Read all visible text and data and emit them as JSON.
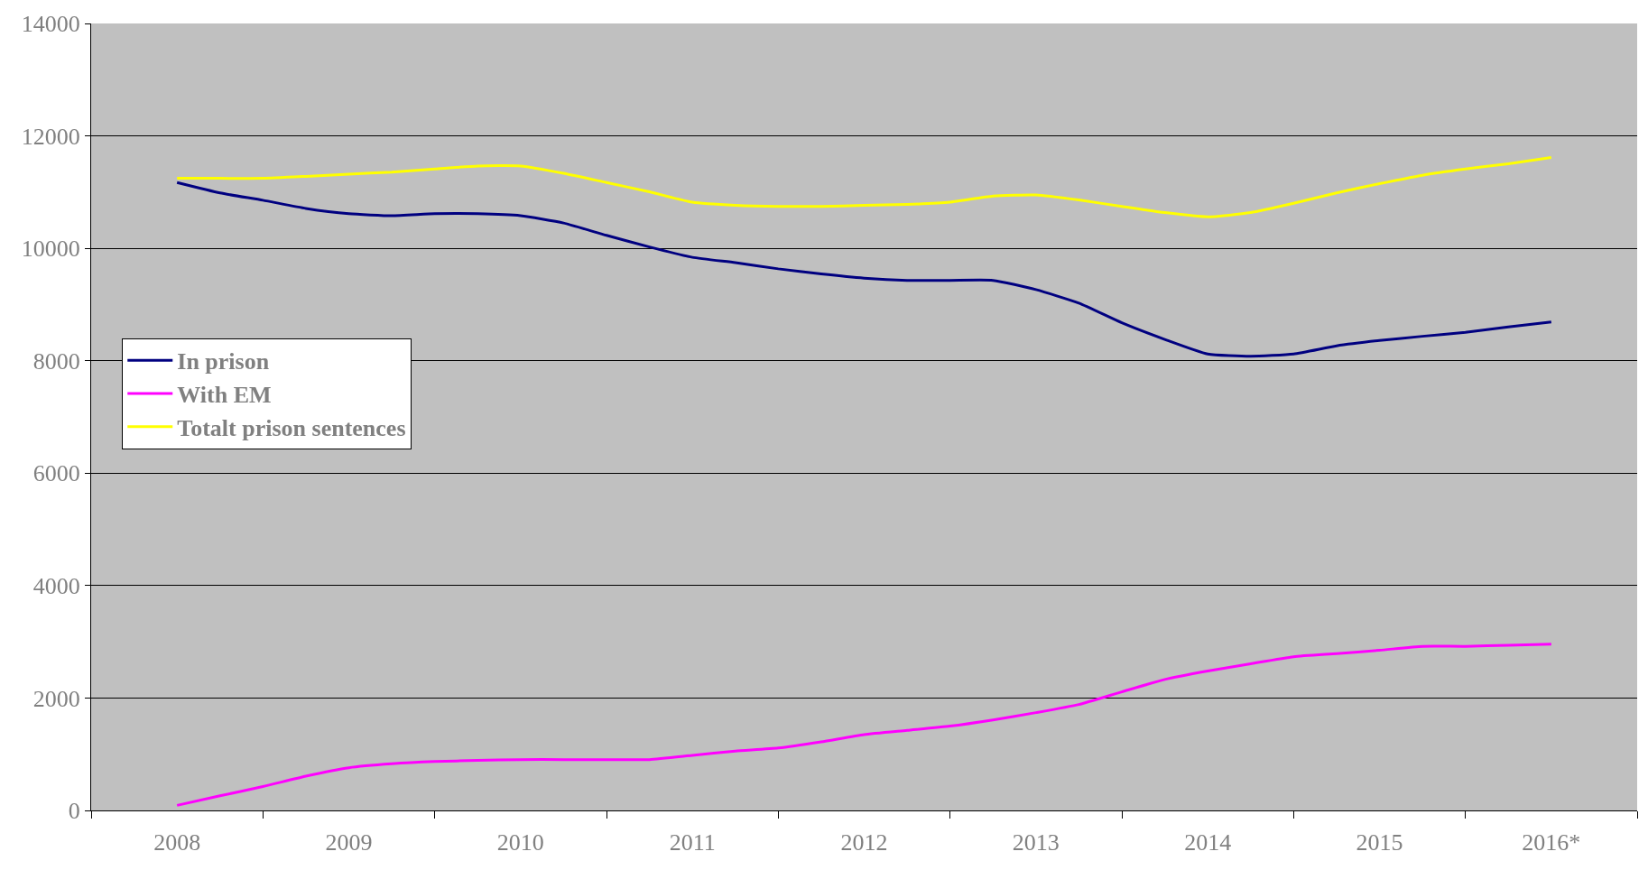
{
  "chart_data": {
    "type": "line",
    "categories": [
      "2008",
      null,
      null,
      null,
      "2009",
      null,
      null,
      null,
      "2010",
      null,
      null,
      null,
      "2011",
      null,
      null,
      null,
      "2012",
      null,
      null,
      null,
      "2013",
      null,
      null,
      null,
      "2014",
      null,
      null,
      null,
      "2015",
      null,
      null,
      null,
      "2016*"
    ],
    "series": [
      {
        "name": "In prison",
        "color": "#000080",
        "values": [
          11170,
          10985,
          10855,
          10710,
          10615,
          10580,
          10615,
          10615,
          10580,
          10450,
          10230,
          10025,
          9840,
          9745,
          9635,
          9545,
          9470,
          9430,
          9430,
          9430,
          9265,
          9025,
          8675,
          8380,
          8120,
          8080,
          8120,
          8265,
          8360,
          8435,
          8505,
          8600,
          8690
        ]
      },
      {
        "name": "With EM",
        "color": "#ff00ff",
        "values": [
          90,
          260,
          425,
          610,
          760,
          830,
          870,
          890,
          905,
          905,
          905,
          905,
          980,
          1055,
          1110,
          1220,
          1350,
          1425,
          1500,
          1610,
          1740,
          1885,
          2110,
          2330,
          2480,
          2610,
          2735,
          2790,
          2850,
          2920,
          2920,
          2940,
          2960
        ]
      },
      {
        "name": "Totalt prison sentences",
        "color": "#ffff00",
        "values": [
          11245,
          11245,
          11245,
          11280,
          11320,
          11355,
          11410,
          11465,
          11465,
          11335,
          11170,
          11005,
          10820,
          10765,
          10745,
          10745,
          10765,
          10780,
          10820,
          10930,
          10950,
          10860,
          10745,
          10635,
          10560,
          10635,
          10800,
          10985,
          11150,
          11300,
          11410,
          11505,
          11615
        ]
      }
    ],
    "ylim": [
      0,
      14000
    ],
    "yticks": [
      0,
      2000,
      4000,
      6000,
      8000,
      10000,
      12000,
      14000
    ],
    "grid": "y",
    "legend": "center left",
    "line_style": "solid",
    "marker": "none"
  }
}
